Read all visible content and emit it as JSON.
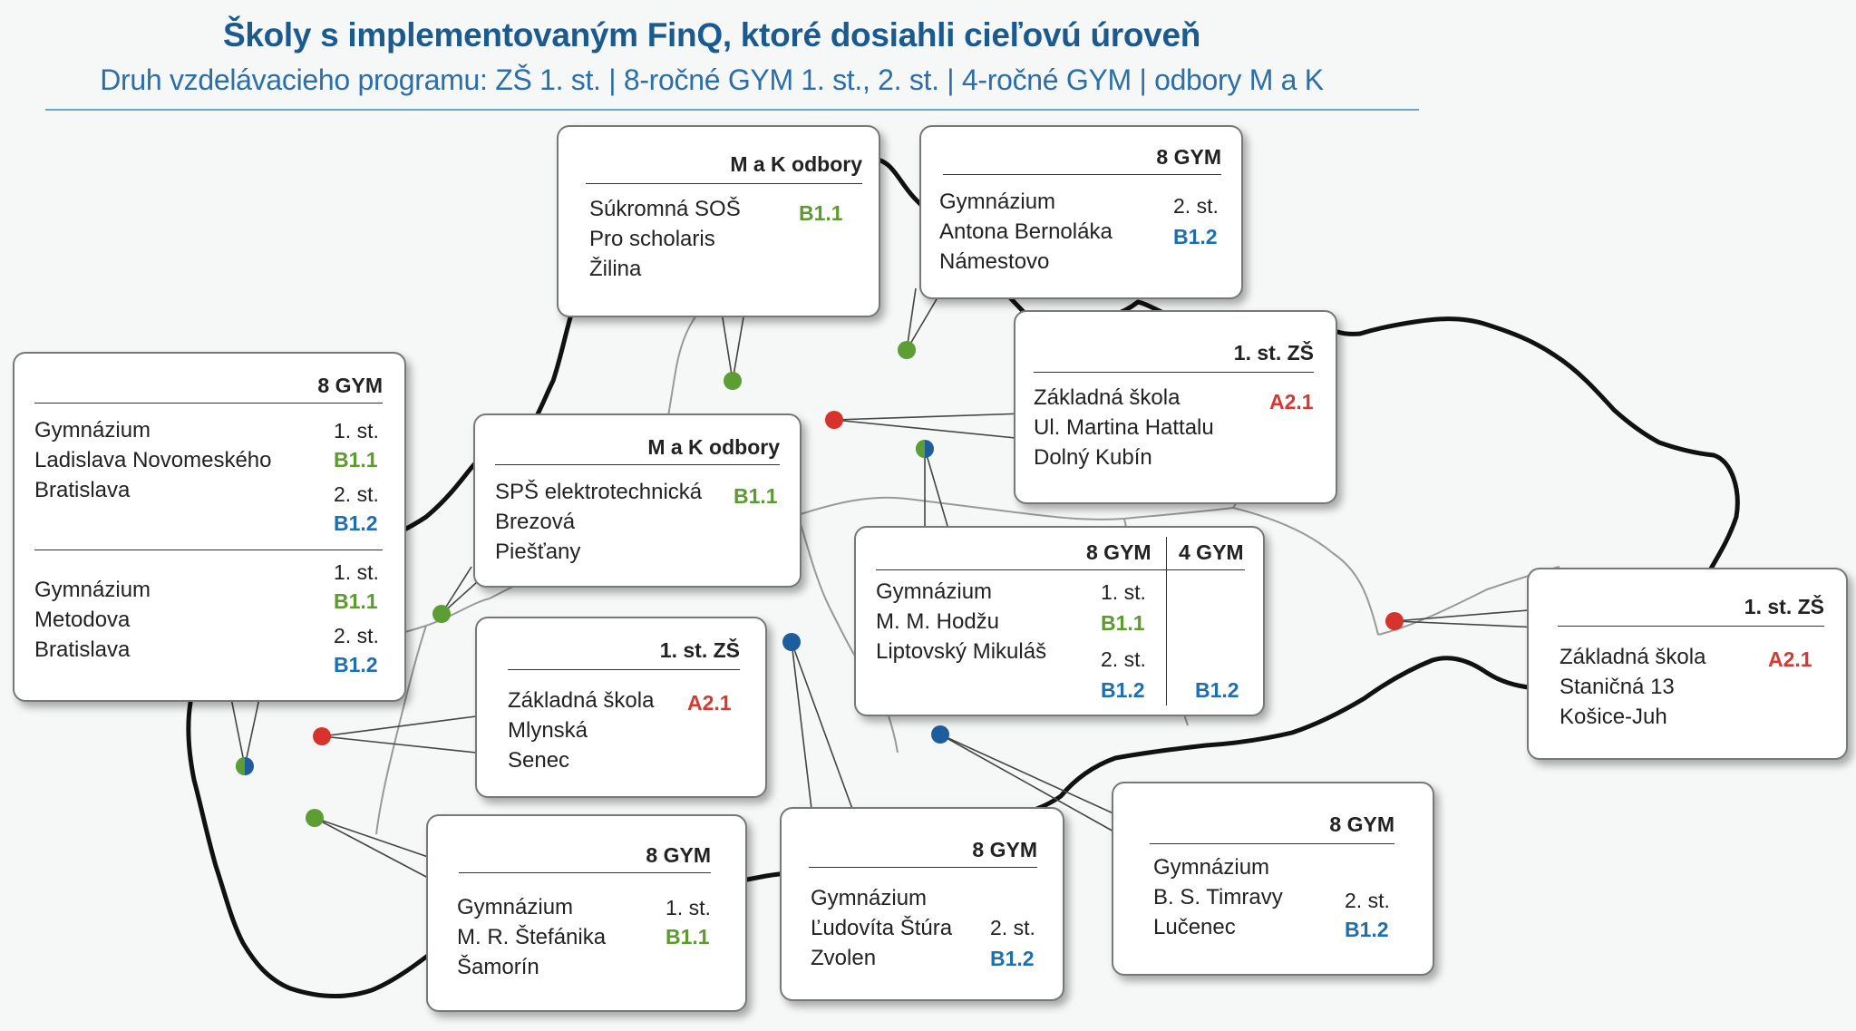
{
  "title": "Školy s implementovaným FinQ, ktoré dosiahli cieľovú úroveň",
  "subtitle": "Druh vzdelávacieho programu: ZŠ 1. st. | 8-ročné GYM 1. st., 2. st. | 4-ročné GYM | odbory M a K",
  "colors": {
    "title": "#1b5a8e",
    "subtitle": "#2c6fa8",
    "level_B1_1": "#5d9b2f",
    "level_B1_2": "#1f6fae",
    "level_A2_1": "#d33a34",
    "marker_green": "#5c9e33",
    "marker_blue": "#1e5d9c",
    "marker_red": "#d8322d",
    "border": "#111111"
  },
  "callouts": {
    "zilina": {
      "header": "M a K odbory",
      "school": "Súkromná SOŠ\nPro scholaris\nŽilina",
      "level": "B1.1"
    },
    "namestovo": {
      "header": "8 GYM",
      "school": "Gymnázium\nAntona Bernoláka\nNámestovo",
      "stage": "2. st.",
      "level": "B1.2"
    },
    "dolny_kubin": {
      "header": "1. st. ZŠ",
      "school": "Základná škola\nUl. Martina Hattalu\nDolný Kubín",
      "level": "A2.1"
    },
    "bratislava": {
      "header": "8 GYM",
      "school1": "Gymnázium\nLadislava Novomeského\nBratislava",
      "s1_stage1": "1. st.",
      "s1_level1": "B1.1",
      "s1_stage2": "2. st.",
      "s1_level2": "B1.2",
      "school2": "Gymnázium\nMetodova\nBratislava",
      "s2_stage1": "1. st.",
      "s2_level1": "B1.1",
      "s2_stage2": "2. st.",
      "s2_level2": "B1.2"
    },
    "piestany": {
      "header": "M a K odbory",
      "school": "SPŠ elektrotechnická\nBrezová\nPiešťany",
      "level": "B1.1"
    },
    "liptovsky": {
      "header_8": "8 GYM",
      "header_4": "4 GYM",
      "school": "Gymnázium\nM. M. Hodžu\nLiptovský Mikuláš",
      "stage1": "1. st.",
      "level1": "B1.1",
      "stage2": "2. st.",
      "level2": "B1.2",
      "level_4gym": "B1.2"
    },
    "kosice": {
      "header": "1. st. ZŠ",
      "school": "Základná škola\nStaničná 13\nKošice-Juh",
      "level": "A2.1"
    },
    "senec": {
      "header": "1. st. ZŠ",
      "school": "Základná škola\nMlynská\nSenec",
      "level": "A2.1"
    },
    "samorin": {
      "header": "8 GYM",
      "school": "Gymnázium\nM. R. Štefánika\nŠamorín",
      "stage": "1. st.",
      "level": "B1.1"
    },
    "zvolen": {
      "header": "8 GYM",
      "school": "Gymnázium\nĽudovíta Štúra\nZvolen",
      "stage": "2. st.",
      "level": "B1.2"
    },
    "lucenec": {
      "header": "8 GYM",
      "school": "Gymnázium\nB. S. Timravy\nLučenec",
      "stage": "2. st.",
      "level": "B1.2"
    }
  }
}
